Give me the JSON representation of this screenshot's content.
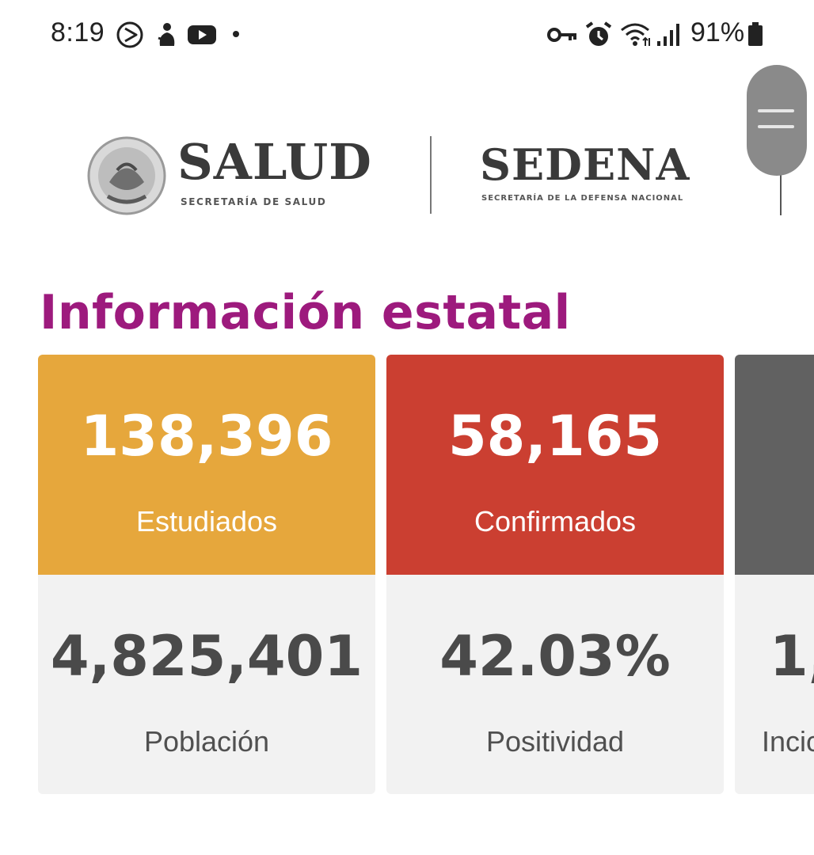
{
  "status_bar": {
    "time": "8:19",
    "battery": "91%",
    "icons_left": [
      "media-play-icon",
      "notification-icon",
      "youtube-icon",
      "dot-icon"
    ],
    "icons_right": [
      "vpn-key-icon",
      "alarm-icon",
      "wifi-icon",
      "signal-icon",
      "battery-icon"
    ]
  },
  "header": {
    "salud_title": "SALUD",
    "salud_subtitle": "SECRETARÍA DE SALUD",
    "sedena_title": "SEDENA",
    "sedena_subtitle": "SECRETARÍA DE LA DEFENSA NACIONAL"
  },
  "section_title": "Información estatal",
  "cards": [
    {
      "top_value": "138,396",
      "top_label": "Estudiados",
      "top_color": "#e6a73c",
      "bottom_value": "4,825,401",
      "bottom_label": "Población"
    },
    {
      "top_value": "58,165",
      "top_label": "Confirmados",
      "top_color": "#cb3f31",
      "bottom_value": "42.03%",
      "bottom_label": "Positividad"
    },
    {
      "top_value": "",
      "top_label": "",
      "top_color": "#616161",
      "bottom_value": "1,",
      "bottom_label": "Incic"
    }
  ]
}
